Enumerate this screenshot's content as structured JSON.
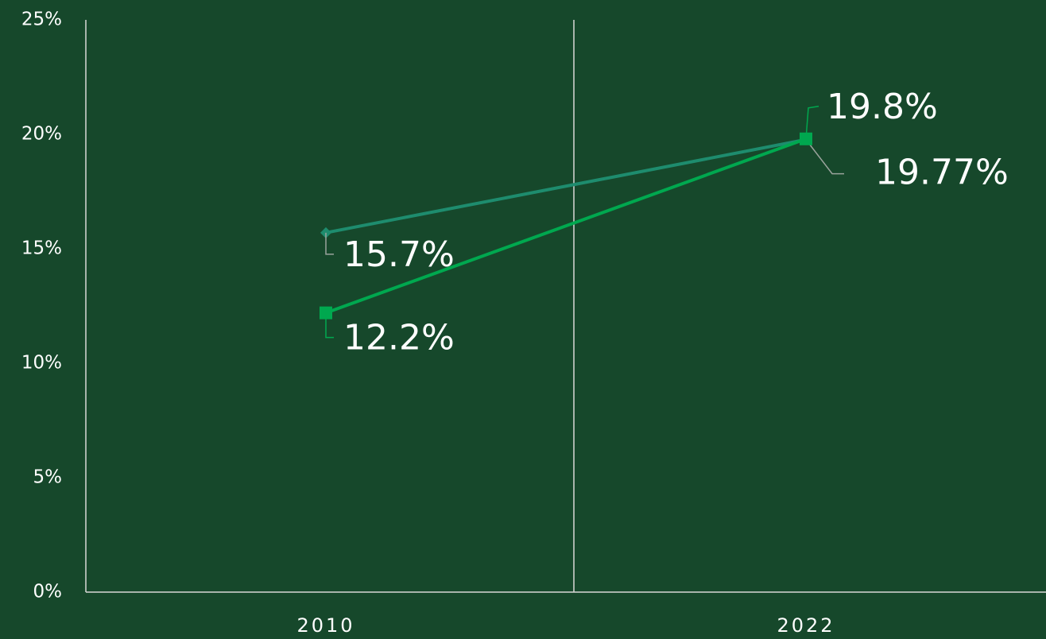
{
  "chart_data": {
    "type": "line",
    "categories": [
      "2010",
      "2022"
    ],
    "series": [
      {
        "color": "#1e8c6e",
        "marker": "diamond",
        "values": [
          15.7,
          19.77
        ],
        "value_labels": [
          "15.7%",
          "19.77%"
        ]
      },
      {
        "color": "#00a84f",
        "marker": "square",
        "values": [
          12.2,
          19.8
        ],
        "value_labels": [
          "12.2%",
          "19.8%"
        ]
      }
    ],
    "ylim": [
      0,
      25
    ],
    "yticks": [
      {
        "value": 0,
        "label": "0%"
      },
      {
        "value": 5,
        "label": "5%"
      },
      {
        "value": 10,
        "label": "10%"
      },
      {
        "value": 15,
        "label": "15%"
      },
      {
        "value": 20,
        "label": "20%"
      },
      {
        "value": 25,
        "label": "25%"
      }
    ]
  }
}
